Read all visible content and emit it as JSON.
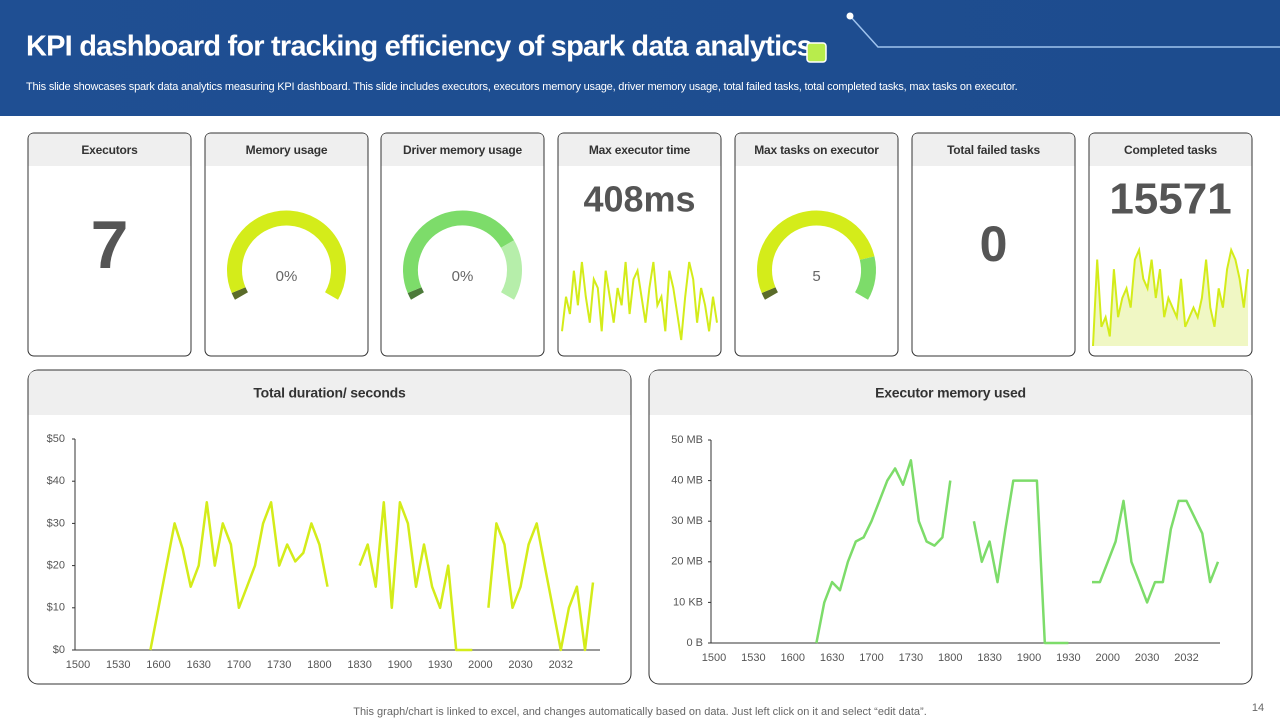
{
  "header": {
    "title": "KPI dashboard for tracking efficiency of spark data analytics",
    "subtitle": "This slide showcases spark data analytics measuring KPI dashboard. This slide includes executors, executors memory usage, driver memory usage, total failed tasks, total completed tasks, max tasks on executor."
  },
  "kpis": [
    {
      "title": "Executors",
      "type": "number",
      "value": 7
    },
    {
      "title": "Memory usage",
      "type": "gauge",
      "value": "0%",
      "gauge": [
        3,
        97
      ],
      "colors": [
        "#5a6b2a",
        "#d4ec1a"
      ]
    },
    {
      "title": "Driver memory usage",
      "type": "gauge",
      "value": "0%",
      "gauge": [
        3,
        72,
        25
      ],
      "colors": [
        "#4c7a3a",
        "#7ddc6a",
        "#b6eeaa"
      ]
    },
    {
      "title": "Max executor time",
      "type": "sparkline",
      "value": "408ms",
      "color": "#d4ec1a",
      "spark": [
        2,
        6,
        4,
        9,
        5,
        10,
        6,
        3,
        8,
        7,
        2,
        9,
        6,
        3,
        7,
        5,
        10,
        4,
        8,
        9,
        6,
        3,
        7,
        10,
        5,
        6,
        2,
        9,
        7,
        4,
        1,
        6,
        10,
        8,
        3,
        7,
        5,
        2,
        6,
        3
      ]
    },
    {
      "title": "Max tasks on executor",
      "type": "gauge",
      "value": 5,
      "gauge": [
        3,
        79,
        18
      ],
      "colors": [
        "#5a6b2a",
        "#d4ec1a",
        "#7ddc6a"
      ]
    },
    {
      "title": "Total failed tasks",
      "type": "number",
      "value": 0
    },
    {
      "title": "Completed tasks",
      "type": "area",
      "value": 15571,
      "color": "#d4ec1a",
      "spark": [
        0,
        9,
        2,
        3,
        1,
        8,
        3,
        5,
        6,
        4,
        9,
        10,
        7,
        6,
        9,
        5,
        8,
        3,
        5,
        4,
        3,
        7,
        2,
        3,
        4,
        3,
        5,
        9,
        4,
        2,
        6,
        4,
        8,
        10,
        9,
        7,
        4,
        8
      ]
    }
  ],
  "chart_data": [
    {
      "type": "line",
      "title": "Total duration/ seconds",
      "color": "#d4ec1a",
      "categories": [
        1500,
        null,
        null,
        null,
        null,
        1530,
        null,
        null,
        null,
        null,
        1600,
        null,
        null,
        null,
        null,
        1630,
        null,
        null,
        null,
        null,
        1700,
        null,
        null,
        null,
        null,
        1730,
        null,
        null,
        null,
        null,
        1800,
        null,
        null,
        null,
        null,
        1830,
        null,
        null,
        null,
        null,
        1900,
        null,
        null,
        null,
        null,
        1930,
        null,
        null,
        null,
        null,
        2000,
        null,
        null,
        null,
        null,
        2030,
        null,
        null,
        null,
        null,
        2032,
        null,
        null,
        null,
        null
      ],
      "values": [
        null,
        null,
        null,
        null,
        null,
        null,
        null,
        null,
        null,
        0,
        10,
        20,
        30,
        24,
        15,
        20,
        35,
        20,
        30,
        25,
        10,
        15,
        20,
        30,
        35,
        20,
        25,
        21,
        23,
        30,
        25,
        15,
        null,
        null,
        null,
        20,
        25,
        15,
        35,
        10,
        35,
        30,
        15,
        25,
        15,
        10,
        20,
        0,
        0,
        0,
        null,
        10,
        30,
        25,
        10,
        15,
        25,
        30,
        20,
        10,
        0,
        10,
        15,
        0,
        16
      ],
      "ylim": [
        0,
        50
      ],
      "yticks": [
        {
          "value": 0,
          "label": "$0"
        },
        {
          "value": 10,
          "label": "$10"
        },
        {
          "value": 20,
          "label": "$20"
        },
        {
          "value": 30,
          "label": "$30"
        },
        {
          "value": 40,
          "label": "$40"
        },
        {
          "value": 50,
          "label": "$50"
        }
      ]
    },
    {
      "type": "line",
      "title": "Executor memory used",
      "color": "#7ddc6a",
      "categories": [
        1500,
        null,
        null,
        null,
        null,
        1530,
        null,
        null,
        null,
        null,
        1600,
        null,
        null,
        null,
        null,
        1630,
        null,
        null,
        null,
        null,
        1700,
        null,
        null,
        null,
        null,
        1730,
        null,
        null,
        null,
        null,
        1800,
        null,
        null,
        null,
        null,
        1830,
        null,
        null,
        null,
        null,
        1900,
        null,
        null,
        null,
        null,
        1930,
        null,
        null,
        null,
        null,
        2000,
        null,
        null,
        null,
        null,
        2030,
        null,
        null,
        null,
        null,
        2032,
        null,
        null,
        null,
        null
      ],
      "values": [
        null,
        null,
        null,
        null,
        null,
        null,
        null,
        null,
        null,
        null,
        null,
        null,
        null,
        0,
        10,
        15,
        13,
        20,
        25,
        26,
        30,
        35,
        40,
        43,
        39,
        45,
        30,
        25,
        24,
        26,
        40,
        null,
        null,
        30,
        20,
        25,
        15,
        28,
        40,
        40,
        40,
        40,
        0,
        0,
        0,
        0,
        null,
        null,
        15,
        15,
        20,
        25,
        35,
        20,
        15,
        10,
        15,
        15,
        28,
        35,
        35,
        31,
        27,
        15,
        20
      ],
      "ylim": [
        0,
        50
      ],
      "yticks": [
        {
          "value": 0,
          "label": "0 B"
        },
        {
          "value": 10,
          "label": "10 KB"
        },
        {
          "value": 20,
          "label": "20 MB"
        },
        {
          "value": 30,
          "label": "30 MB"
        },
        {
          "value": 40,
          "label": "40 MB"
        },
        {
          "value": 50,
          "label": "50 MB"
        }
      ]
    }
  ],
  "footer": {
    "note": "This graph/chart is linked to excel,  and changes automatically based on data. Just left click on it and select “edit data”.",
    "page": 14
  }
}
